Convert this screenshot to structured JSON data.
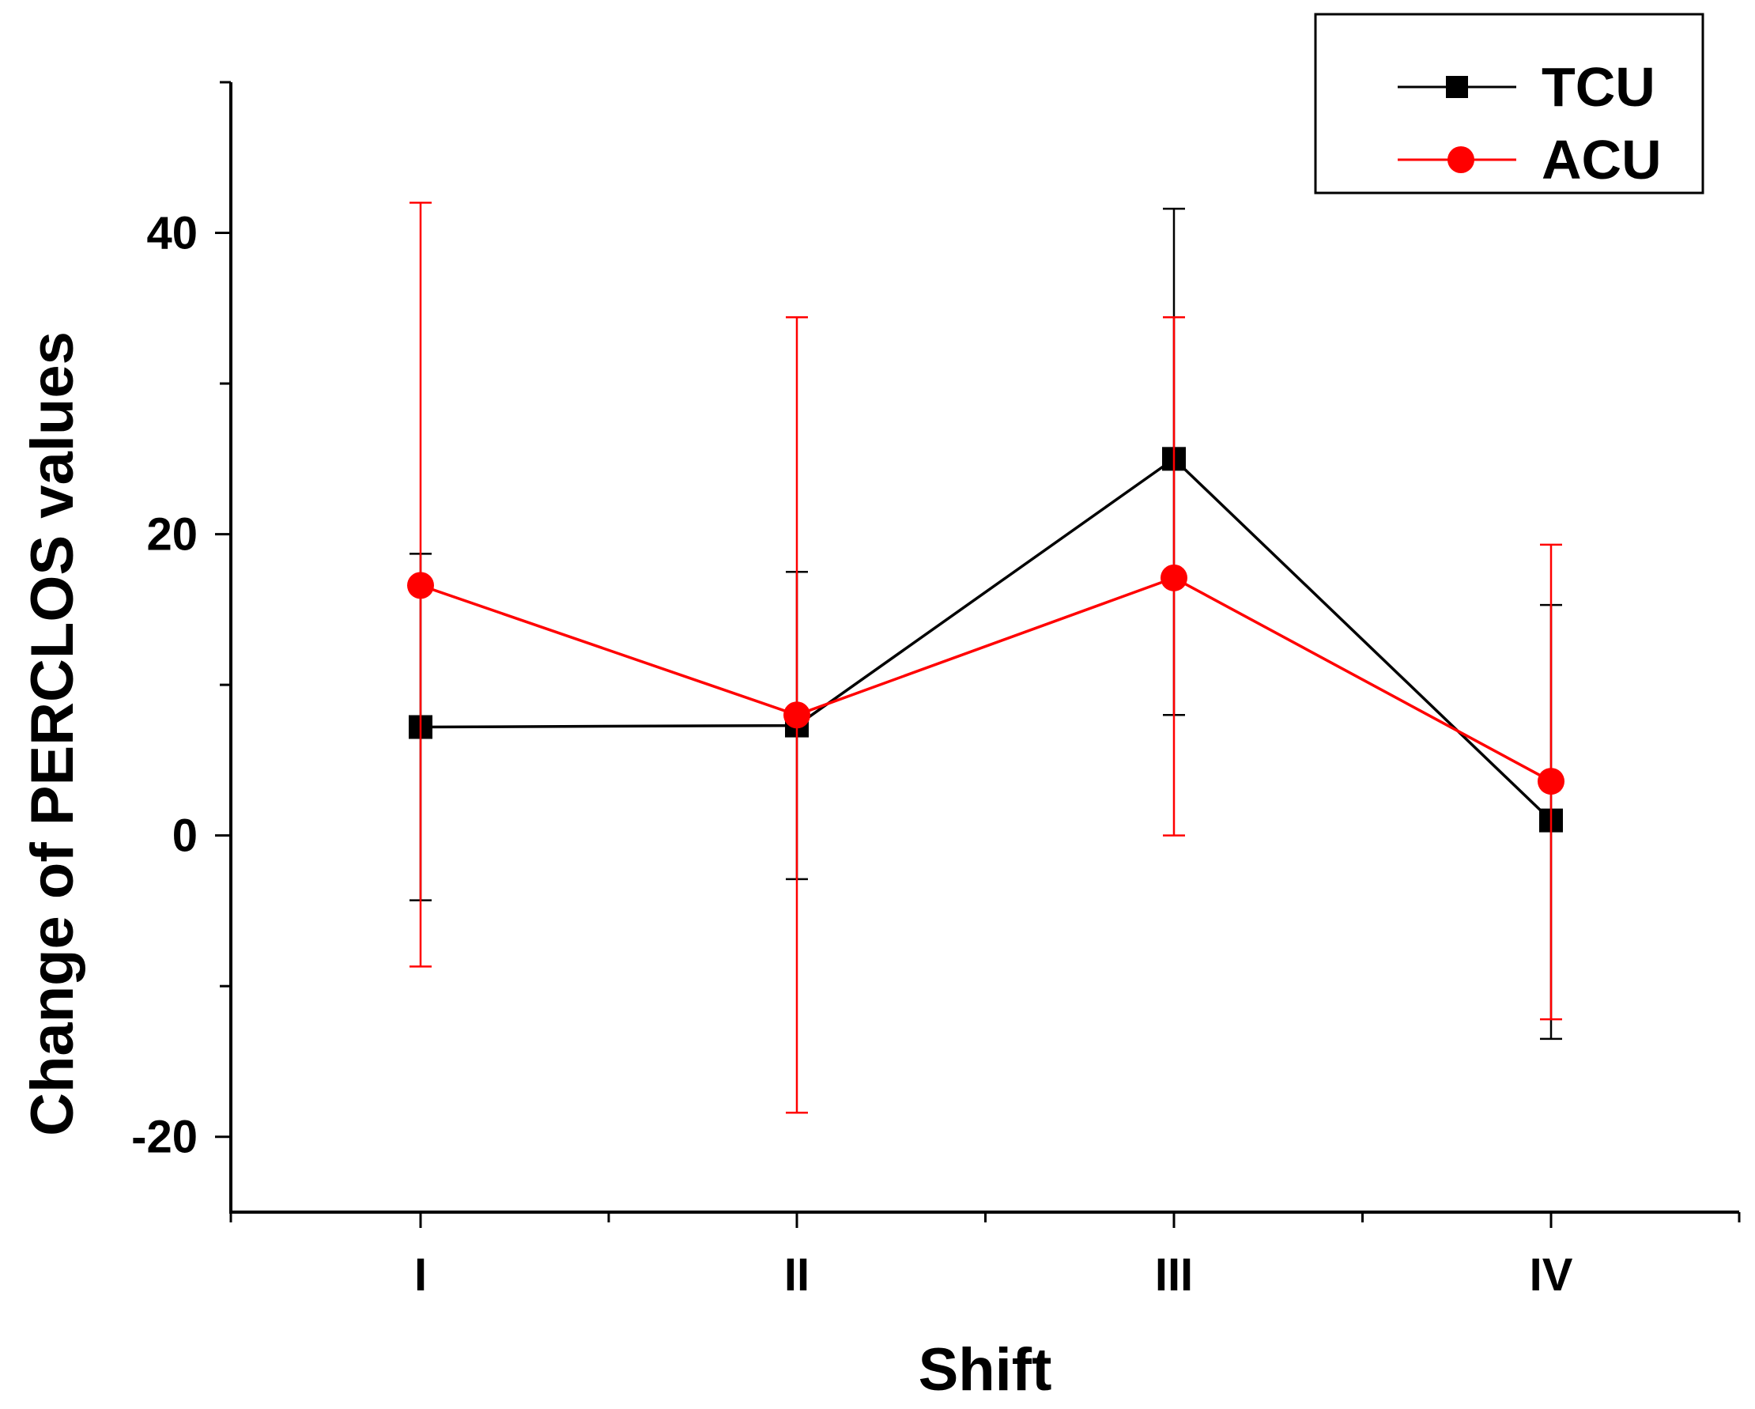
{
  "chart_data": {
    "type": "line",
    "title": "",
    "xlabel": "Shift",
    "ylabel": "Change of PERCLOS values",
    "categories": [
      "I",
      "II",
      "III",
      "IV"
    ],
    "ylim": [
      -25,
      50
    ],
    "yticks": [
      -20,
      0,
      20,
      40
    ],
    "yticks_labels": [
      "-20",
      "0",
      "20",
      "40"
    ],
    "y_minor_step": 10,
    "legend_position": "top-right",
    "series": [
      {
        "name": "TCU",
        "color": "#000000",
        "marker": "square",
        "values": [
          7.2,
          7.3,
          25.0,
          1.0
        ],
        "err_low": [
          -4.3,
          -2.9,
          8.0,
          -13.5
        ],
        "err_high": [
          18.7,
          17.5,
          41.6,
          15.3
        ]
      },
      {
        "name": "ACU",
        "color": "#ff0000",
        "marker": "circle",
        "values": [
          16.6,
          8.0,
          17.1,
          3.6
        ],
        "err_low": [
          -8.7,
          -18.4,
          0.0,
          -12.2
        ],
        "err_high": [
          42.0,
          34.4,
          34.4,
          19.3
        ]
      }
    ]
  }
}
